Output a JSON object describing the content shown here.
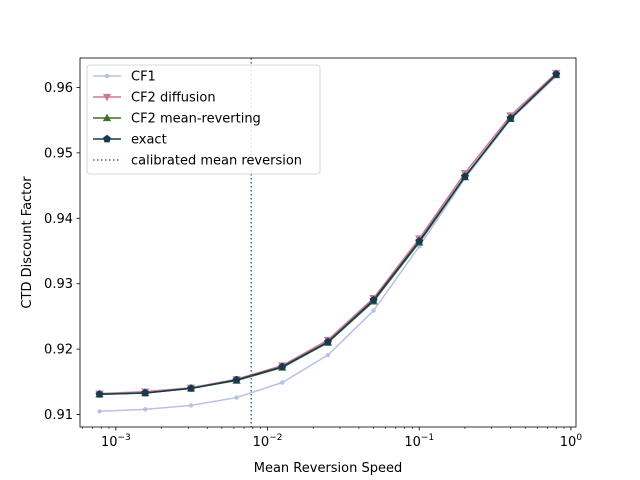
{
  "chart_data": {
    "type": "line",
    "title": "",
    "xlabel": "Mean Reversion Speed",
    "ylabel": "CTD Discount Factor",
    "xscale": "log",
    "xlim": [
      0.00058,
      1.08
    ],
    "ylim": [
      0.9081,
      0.9645
    ],
    "xticks": [
      {
        "value": 0.001,
        "base": "10",
        "exp": "−3"
      },
      {
        "value": 0.01,
        "base": "10",
        "exp": "−2"
      },
      {
        "value": 0.1,
        "base": "10",
        "exp": "−1"
      },
      {
        "value": 1,
        "base": "10",
        "exp": "0"
      }
    ],
    "yticks": [
      {
        "value": 0.91,
        "label": "0.91"
      },
      {
        "value": 0.92,
        "label": "0.92"
      },
      {
        "value": 0.93,
        "label": "0.93"
      },
      {
        "value": 0.94,
        "label": "0.94"
      },
      {
        "value": 0.95,
        "label": "0.95"
      },
      {
        "value": 0.96,
        "label": "0.96"
      }
    ],
    "x": [
      0.00078,
      0.00156,
      0.00313,
      0.00625,
      0.0125,
      0.025,
      0.05,
      0.1,
      0.2,
      0.4,
      0.8
    ],
    "series": [
      {
        "name": "CF1",
        "color": "#b8c0e4",
        "marker": "dot",
        "values": [
          0.9105,
          0.9108,
          0.9114,
          0.9126,
          0.9149,
          0.9191,
          0.9259,
          0.9357,
          0.9461,
          0.9551,
          0.9617
        ]
      },
      {
        "name": "CF2 diffusion",
        "color": "#cc7a93",
        "marker": "triangle-down",
        "values": [
          0.9132,
          0.9135,
          0.9141,
          0.9154,
          0.9175,
          0.9214,
          0.9278,
          0.9369,
          0.9469,
          0.9557,
          0.9622
        ]
      },
      {
        "name": "CF2 mean-reverting",
        "color": "#446b2c",
        "marker": "triangle-up",
        "values": [
          0.9131,
          0.9133,
          0.914,
          0.9152,
          0.9172,
          0.921,
          0.9273,
          0.9363,
          0.9463,
          0.9552,
          0.9619
        ]
      },
      {
        "name": "exact",
        "color": "#163a4f",
        "marker": "pentagon",
        "values": [
          0.9131,
          0.9133,
          0.914,
          0.9153,
          0.9173,
          0.9211,
          0.9275,
          0.9365,
          0.9464,
          0.9553,
          0.962
        ]
      }
    ],
    "vline": {
      "name": "calibrated mean reversion",
      "color": "#1f77b4",
      "x": 0.0078
    },
    "legend_position": "upper-left",
    "grid": false
  }
}
